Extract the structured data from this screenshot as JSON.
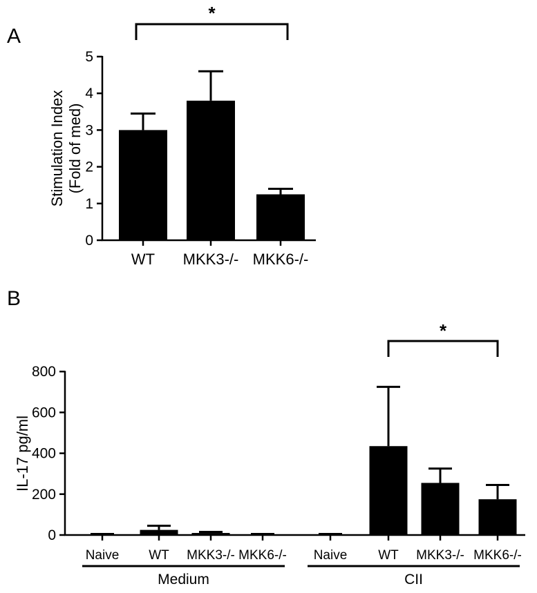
{
  "chart_data": [
    {
      "panel": "A",
      "type": "bar",
      "categories": [
        "WT",
        "MKK3-/-",
        "MKK6-/-"
      ],
      "values": [
        3.0,
        3.8,
        1.25
      ],
      "errors": [
        0.45,
        0.8,
        0.15
      ],
      "ylabel_line1": "Stimulation Index",
      "ylabel_line2": "(Fold of med)",
      "ylim": [
        0,
        5
      ],
      "yticks": [
        "0",
        "1",
        "2",
        "3",
        "4",
        "5"
      ],
      "significance": {
        "from": "WT",
        "to": "MKK6-/-",
        "label": "*"
      }
    },
    {
      "panel": "B",
      "type": "bar",
      "categories": [
        "Naive",
        "WT",
        "MKK3-/-",
        "MKK6-/-",
        "Naive",
        "WT",
        "MKK3-/-",
        "MKK6-/-"
      ],
      "values": [
        3,
        25,
        10,
        3,
        3,
        435,
        255,
        175
      ],
      "errors": [
        2,
        20,
        5,
        2,
        2,
        290,
        70,
        70
      ],
      "groups": [
        {
          "label": "Medium",
          "start": 0,
          "end": 3
        },
        {
          "label": "CII",
          "start": 4,
          "end": 7
        }
      ],
      "ylabel": "IL-17 pg/ml",
      "ylim": [
        0,
        800
      ],
      "yticks": [
        "0",
        "200",
        "400",
        "600",
        "800"
      ],
      "significance": {
        "from": "WT",
        "to": "MKK6-/-",
        "group": "CII",
        "label": "*"
      }
    }
  ]
}
